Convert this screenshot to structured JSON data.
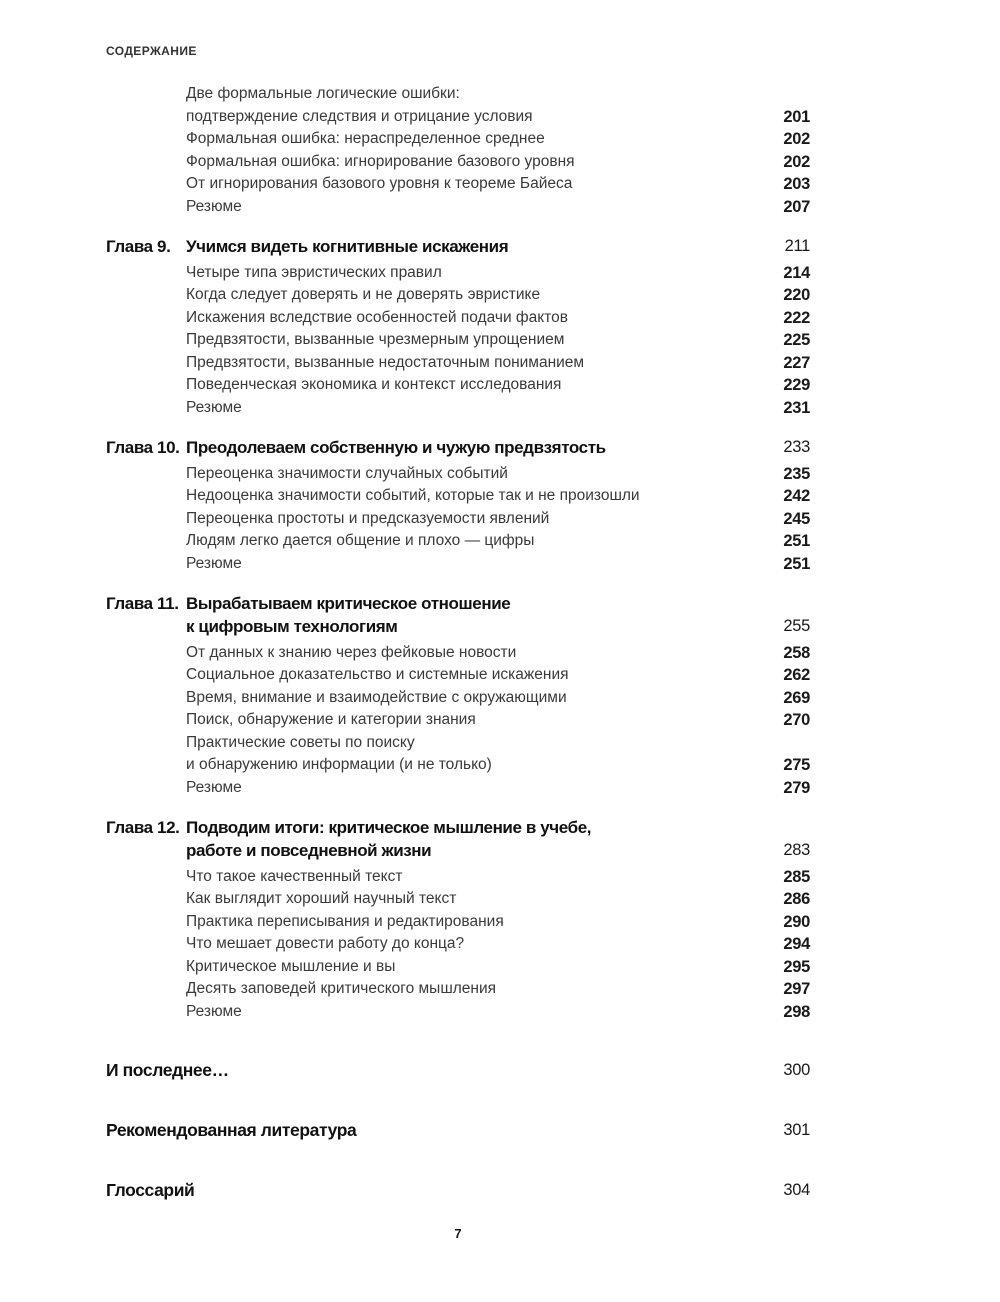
{
  "header": "СОДЕРЖАНИЕ",
  "pre_entries": [
    {
      "lines": [
        "Две формальные логические ошибки:",
        "подтверждение следствия и отрицание условия"
      ],
      "page": "201"
    },
    {
      "lines": [
        "Формальная ошибка: нераспределенное среднее"
      ],
      "page": "202"
    },
    {
      "lines": [
        "Формальная ошибка: игнорирование базового уровня"
      ],
      "page": "202"
    },
    {
      "lines": [
        "От игнорирования базового уровня к теореме Байеса"
      ],
      "page": "203"
    },
    {
      "lines": [
        "Резюме"
      ],
      "page": "207"
    }
  ],
  "chapters": [
    {
      "label": "Глава 9.",
      "title_lines": [
        "Учимся видеть когнитивные искажения"
      ],
      "page": "211",
      "entries": [
        {
          "lines": [
            "Четыре типа эвристических правил"
          ],
          "page": "214"
        },
        {
          "lines": [
            "Когда следует доверять и не доверять эвристике"
          ],
          "page": "220"
        },
        {
          "lines": [
            "Искажения вследствие особенностей подачи фактов"
          ],
          "page": "222"
        },
        {
          "lines": [
            "Предвзятости, вызванные чрезмерным упрощением"
          ],
          "page": "225"
        },
        {
          "lines": [
            "Предвзятости, вызванные недостаточным пониманием"
          ],
          "page": "227"
        },
        {
          "lines": [
            "Поведенческая экономика и контекст исследования"
          ],
          "page": "229"
        },
        {
          "lines": [
            "Резюме"
          ],
          "page": "231"
        }
      ]
    },
    {
      "label": "Глава 10.",
      "title_lines": [
        "Преодолеваем собственную и чужую предвзятость"
      ],
      "page": "233",
      "entries": [
        {
          "lines": [
            "Переоценка значимости случайных событий"
          ],
          "page": "235"
        },
        {
          "lines": [
            "Недооценка значимости событий, которые так и не произошли"
          ],
          "page": "242"
        },
        {
          "lines": [
            "Переоценка простоты и предсказуемости явлений"
          ],
          "page": "245"
        },
        {
          "lines": [
            "Людям легко дается общение и плохо — цифры"
          ],
          "page": "251"
        },
        {
          "lines": [
            "Резюме"
          ],
          "page": "251"
        }
      ]
    },
    {
      "label": "Глава 11.",
      "title_lines": [
        "Вырабатываем критическое отношение",
        "к цифровым технологиям"
      ],
      "page": "255",
      "entries": [
        {
          "lines": [
            "От данных к знанию через фейковые новости"
          ],
          "page": "258"
        },
        {
          "lines": [
            "Социальное доказательство и системные искажения"
          ],
          "page": "262"
        },
        {
          "lines": [
            "Время, внимание и взаимодействие с окружающими"
          ],
          "page": "269"
        },
        {
          "lines": [
            "Поиск, обнаружение и категории знания"
          ],
          "page": "270"
        },
        {
          "lines": [
            "Практические советы по поиску",
            "и обнаружению информации (и не только)"
          ],
          "page": "275"
        },
        {
          "lines": [
            "Резюме"
          ],
          "page": "279"
        }
      ]
    },
    {
      "label": "Глава 12.",
      "title_lines": [
        "Подводим итоги: критическое мышление в учебе,",
        "работе и повседневной жизни"
      ],
      "page": "283",
      "entries": [
        {
          "lines": [
            "Что такое качественный текст"
          ],
          "page": "285"
        },
        {
          "lines": [
            "Как выглядит хороший научный текст"
          ],
          "page": "286"
        },
        {
          "lines": [
            "Практика переписывания и редактирования"
          ],
          "page": "290"
        },
        {
          "lines": [
            "Что мешает довести работу до конца?"
          ],
          "page": "294"
        },
        {
          "lines": [
            "Критическое мышление и вы"
          ],
          "page": "295"
        },
        {
          "lines": [
            "Десять заповедей критического мышления"
          ],
          "page": "297"
        },
        {
          "lines": [
            "Резюме"
          ],
          "page": "298"
        }
      ]
    }
  ],
  "back_matter": [
    {
      "title": "И последнее…",
      "page": "300"
    },
    {
      "title": "Рекомендованная литература",
      "page": "301"
    },
    {
      "title": "Глоссарий",
      "page": "304"
    }
  ],
  "folio": "7"
}
